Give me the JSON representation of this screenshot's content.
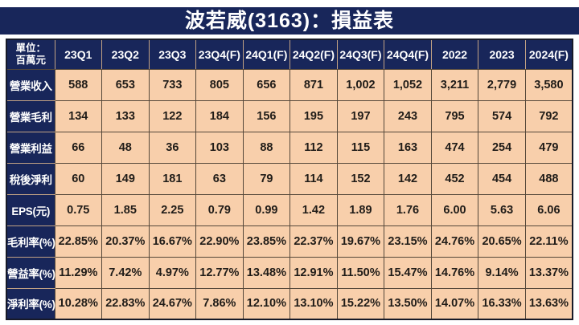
{
  "title": "波若威(3163)：損益表",
  "unit_header": {
    "line1": "單位：",
    "line2": "百萬元"
  },
  "chart_data": {
    "type": "table",
    "title": "波若威(3163)：損益表",
    "unit": "百萬元",
    "columns": [
      "23Q1",
      "23Q2",
      "23Q3",
      "23Q4(F)",
      "24Q1(F)",
      "24Q2(F)",
      "24Q3(F)",
      "24Q4(F)",
      "2022",
      "2023",
      "2024(F)"
    ],
    "rows": [
      {
        "label": "營業收入",
        "values": [
          "588",
          "653",
          "733",
          "805",
          "656",
          "871",
          "1,002",
          "1,052",
          "3,211",
          "2,779",
          "3,580"
        ]
      },
      {
        "label": "營業毛利",
        "values": [
          "134",
          "133",
          "122",
          "184",
          "156",
          "195",
          "197",
          "243",
          "795",
          "574",
          "792"
        ]
      },
      {
        "label": "營業利益",
        "values": [
          "66",
          "48",
          "36",
          "103",
          "88",
          "112",
          "115",
          "163",
          "474",
          "254",
          "479"
        ]
      },
      {
        "label": "稅後淨利",
        "values": [
          "60",
          "149",
          "181",
          "63",
          "79",
          "114",
          "152",
          "142",
          "452",
          "454",
          "488"
        ]
      },
      {
        "label": "EPS(元)",
        "values": [
          "0.75",
          "1.85",
          "2.25",
          "0.79",
          "0.99",
          "1.42",
          "1.89",
          "1.76",
          "6.00",
          "5.63",
          "6.06"
        ]
      },
      {
        "label": "毛利率(%)",
        "values": [
          "22.85%",
          "20.37%",
          "16.67%",
          "22.90%",
          "23.85%",
          "22.37%",
          "19.67%",
          "23.15%",
          "24.76%",
          "20.65%",
          "22.11%"
        ]
      },
      {
        "label": "營益率(%)",
        "values": [
          "11.29%",
          "7.42%",
          "4.97%",
          "12.77%",
          "13.48%",
          "12.91%",
          "11.50%",
          "15.47%",
          "14.76%",
          "9.14%",
          "13.37%"
        ]
      },
      {
        "label": "淨利率(%)",
        "values": [
          "10.28%",
          "22.83%",
          "24.67%",
          "7.86%",
          "12.10%",
          "13.10%",
          "15.22%",
          "13.50%",
          "14.07%",
          "16.33%",
          "13.63%"
        ]
      }
    ]
  },
  "colors": {
    "navy": "#18265a",
    "cell_bg": "#f8cfab",
    "grid_dark": "#55483a",
    "grid_tan": "#c2a284",
    "text_dark": "#201c18",
    "title_text": "#ffffff",
    "outer_border": "#171a28"
  }
}
